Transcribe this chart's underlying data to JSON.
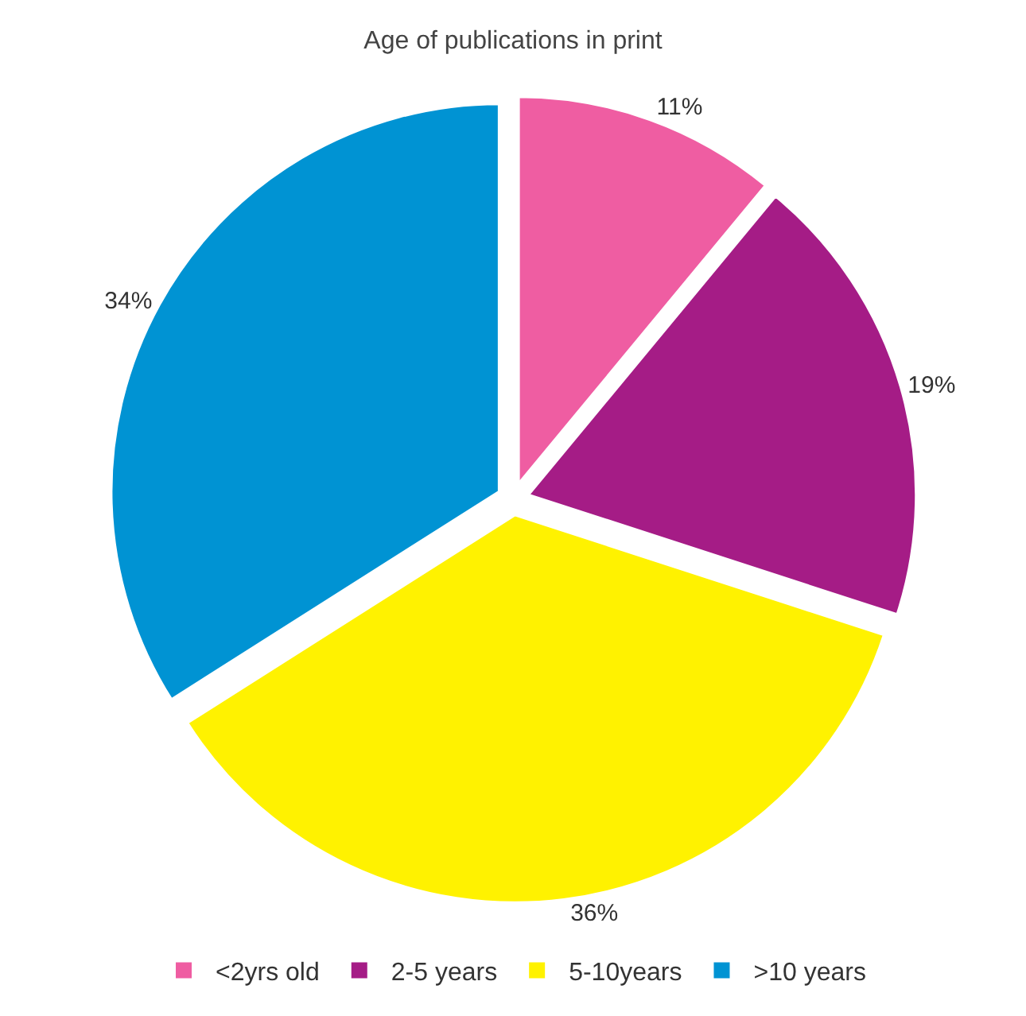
{
  "chart_data": {
    "type": "pie",
    "title": "Age of publications in print",
    "categories": [
      "<2yrs old",
      "2-5 years",
      "5-10years",
      ">10 years"
    ],
    "values": [
      11,
      19,
      36,
      34
    ],
    "value_labels": [
      "11%",
      "19%",
      "36%",
      "34%"
    ],
    "colors": [
      "#ef5da2",
      "#a51c86",
      "#fff200",
      "#0093d3"
    ],
    "legend": "bottom"
  }
}
